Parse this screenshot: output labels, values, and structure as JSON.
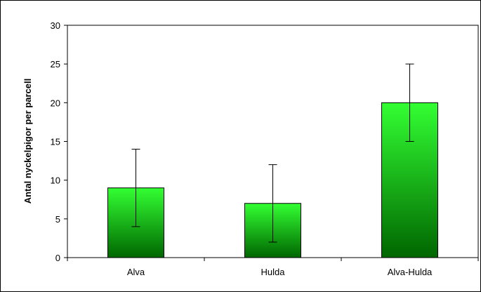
{
  "chart_data": {
    "type": "bar",
    "title": "",
    "xlabel": "",
    "ylabel": "Antal nyckelpigor per parcell",
    "categories": [
      "Alva",
      "Hulda",
      "Alva-Hulda"
    ],
    "values": [
      9,
      7,
      20
    ],
    "error_low": [
      4,
      2,
      15
    ],
    "error_high": [
      14,
      12,
      25
    ],
    "ylim": [
      0,
      30
    ],
    "yticks": [
      0,
      5,
      10,
      15,
      20,
      25,
      30
    ],
    "ytick_labels": [
      "0",
      "5",
      "10",
      "15",
      "20",
      "25",
      "30"
    ],
    "grid": false,
    "legend": "none",
    "colors": {
      "bar_top": "#33ff33",
      "bar_bottom": "#006600",
      "bar_border": "#000000",
      "axis": "#000000"
    }
  }
}
